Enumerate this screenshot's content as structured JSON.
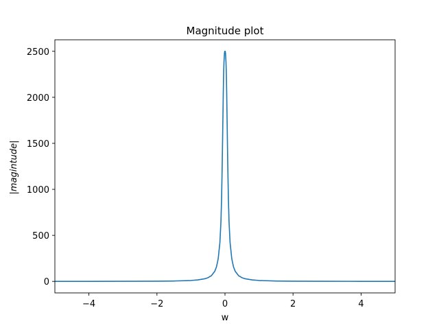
{
  "chart_data": {
    "type": "line",
    "title": "Magnitude plot",
    "xlabel": "w",
    "ylabel": "|magintude|",
    "xlim": [
      -5,
      5
    ],
    "ylim": [
      -125,
      2625
    ],
    "x_ticks": [
      -4,
      -2,
      0,
      2,
      4
    ],
    "x_tick_labels": [
      "−4",
      "−2",
      "0",
      "2",
      "4"
    ],
    "y_ticks": [
      0,
      500,
      1000,
      1500,
      2000,
      2500
    ],
    "y_tick_labels": [
      "0",
      "500",
      "1000",
      "1500",
      "2000",
      "2500"
    ],
    "grid": false,
    "legend": "none",
    "series": [
      {
        "color": "#1f77b4",
        "x": [
          -5,
          -4,
          -3,
          -2,
          -1.5,
          -1,
          -0.8,
          -0.6,
          -0.5,
          -0.4,
          -0.3,
          -0.25,
          -0.2,
          -0.15,
          -0.12,
          -0.1,
          -0.08,
          -0.06,
          -0.05,
          -0.04,
          -0.03,
          -0.02,
          -0.015,
          -0.01,
          -0.005,
          0,
          0.005,
          0.01,
          0.015,
          0.02,
          0.03,
          0.04,
          0.05,
          0.06,
          0.08,
          0.1,
          0.12,
          0.15,
          0.2,
          0.25,
          0.3,
          0.4,
          0.5,
          0.6,
          0.8,
          1,
          1.5,
          2,
          3,
          4,
          5
        ],
        "y": [
          0.4,
          0.6,
          1.1,
          2.5,
          4.4,
          10,
          16,
          28,
          40,
          62,
          110,
          158,
          245,
          420,
          640,
          900,
          1300,
          1800,
          2050,
          2250,
          2380,
          2450,
          2480,
          2495,
          2500,
          2500,
          2500,
          2495,
          2480,
          2450,
          2380,
          2250,
          2050,
          1800,
          1300,
          900,
          640,
          420,
          245,
          158,
          110,
          62,
          40,
          28,
          16,
          10,
          4.4,
          2.5,
          1.1,
          0.6,
          0.4
        ]
      }
    ]
  }
}
